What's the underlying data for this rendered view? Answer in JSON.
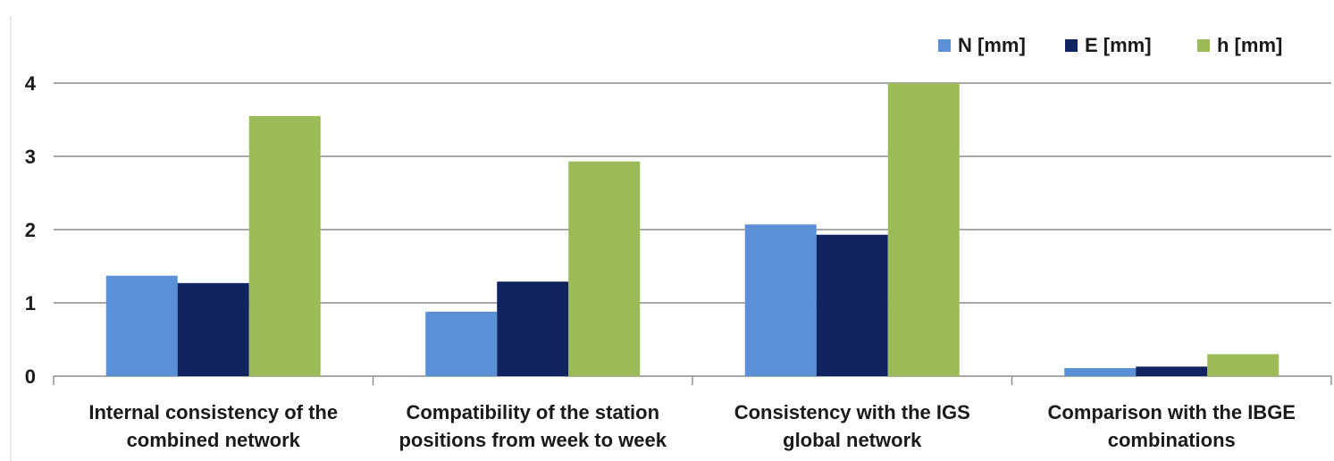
{
  "chart_data": {
    "type": "bar",
    "categories": [
      [
        "Internal consistency of the",
        "combined network"
      ],
      [
        "Compatibility of the station",
        "positions from week to week"
      ],
      [
        "Consistency with the IGS",
        "global network"
      ],
      [
        "Comparison with the IBGE",
        "combinations"
      ]
    ],
    "series": [
      {
        "name": "N [mm]",
        "color": "#5b8fd6",
        "values": [
          1.37,
          0.88,
          2.07,
          0.11
        ]
      },
      {
        "name": "E [mm]",
        "color": "#0f2461",
        "values": [
          1.27,
          1.29,
          1.93,
          0.13
        ]
      },
      {
        "name": "h [mm]",
        "color": "#9bbb59",
        "values": [
          3.55,
          2.93,
          4.0,
          0.3
        ]
      }
    ],
    "yticks": [
      "0",
      "1",
      "2",
      "3",
      "4"
    ],
    "ylim": [
      0,
      4
    ],
    "grid": true,
    "legend_position": "top-right",
    "title": "",
    "xlabel": "",
    "ylabel": ""
  }
}
